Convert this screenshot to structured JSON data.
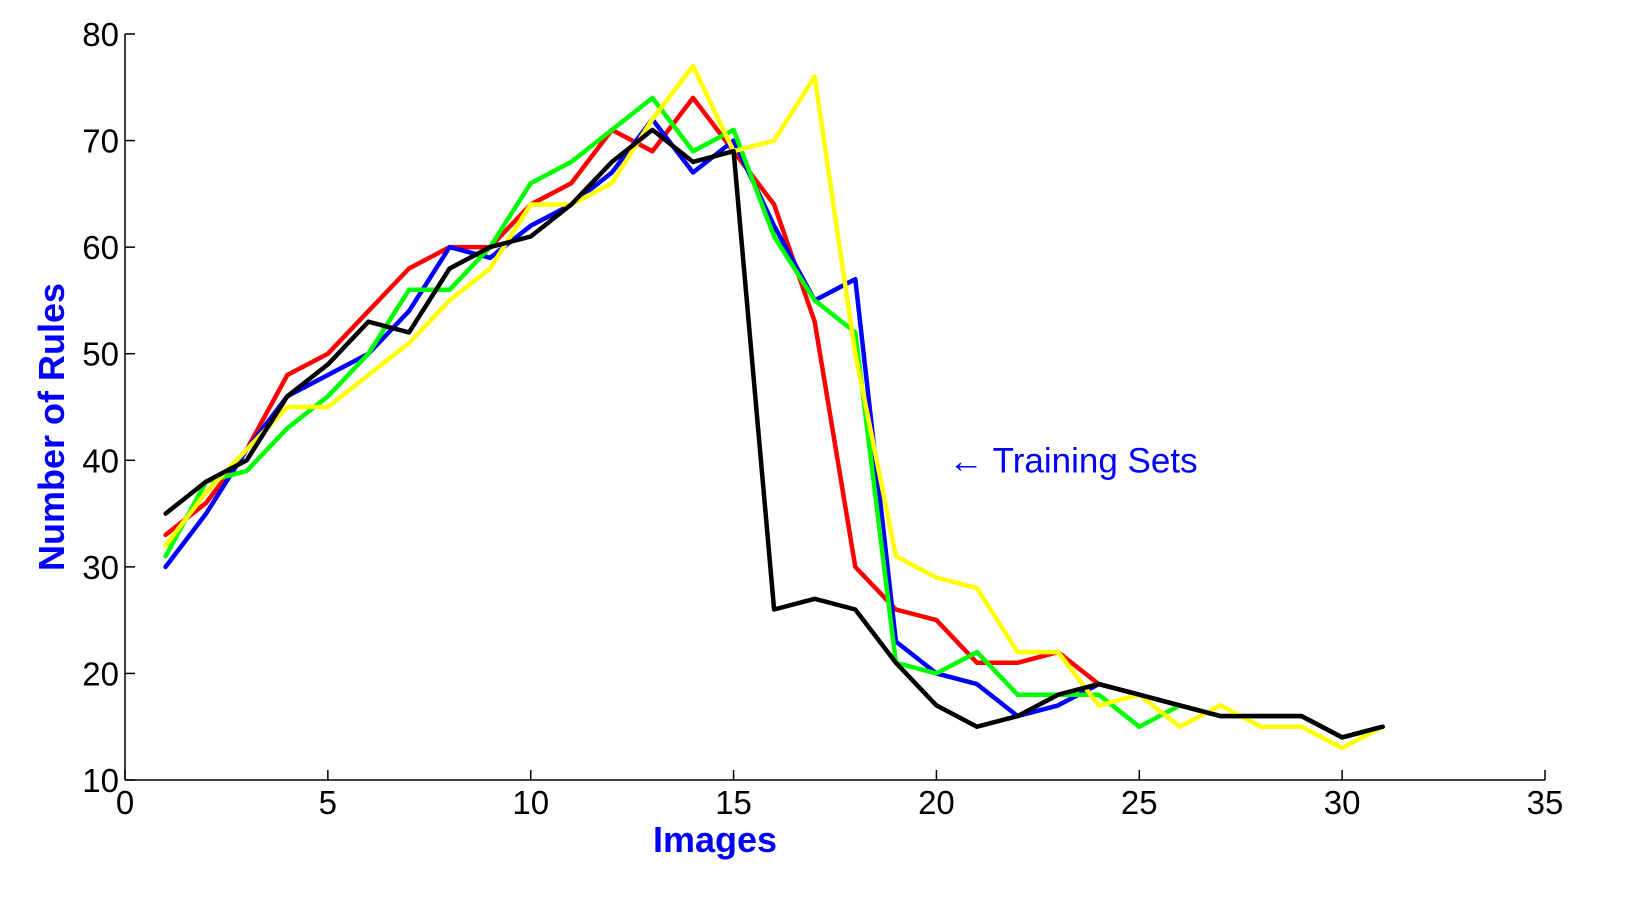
{
  "chart_data": {
    "type": "line",
    "title": "",
    "xlabel": "Images",
    "ylabel": "Number of Rules",
    "xlim": [
      0,
      35
    ],
    "ylim": [
      10,
      80
    ],
    "xticks": [
      0,
      5,
      10,
      15,
      20,
      25,
      30,
      35
    ],
    "yticks": [
      10,
      20,
      30,
      40,
      50,
      60,
      70,
      80
    ],
    "grid": false,
    "legend": "none",
    "annotation": {
      "text": "← Training Sets",
      "x": 20.3,
      "y": 40,
      "color": "#0000ff"
    },
    "label_color": "#0000ff",
    "series": [
      {
        "name": "red",
        "color": "#ff0000",
        "x": [
          1,
          2,
          3,
          4,
          5,
          6,
          7,
          8,
          9,
          10,
          11,
          12,
          13,
          14,
          15,
          16,
          17,
          18,
          19,
          20,
          21,
          22,
          23,
          24,
          25,
          26,
          27,
          28,
          29,
          30,
          31
        ],
        "values": [
          33,
          36,
          41,
          48,
          50,
          54,
          58,
          60,
          60,
          64,
          66,
          71,
          69,
          74,
          69,
          64,
          53,
          30,
          26,
          25,
          21,
          21,
          22,
          19,
          18,
          17,
          16,
          16,
          16,
          14,
          15
        ]
      },
      {
        "name": "blue",
        "color": "#0000ff",
        "x": [
          1,
          2,
          3,
          4,
          5,
          6,
          7,
          8,
          9,
          10,
          11,
          12,
          13,
          14,
          15,
          16,
          17,
          18,
          19,
          20,
          21,
          22,
          23,
          24,
          25,
          26,
          27,
          28,
          29,
          30,
          31
        ],
        "values": [
          30,
          35,
          41,
          46,
          48,
          50,
          54,
          60,
          59,
          62,
          64,
          67,
          72,
          67,
          70,
          62,
          55,
          57,
          23,
          20,
          19,
          16,
          17,
          19,
          18,
          17,
          16,
          16,
          16,
          14,
          15
        ]
      },
      {
        "name": "green",
        "color": "#00ff00",
        "x": [
          1,
          2,
          3,
          4,
          5,
          6,
          7,
          8,
          9,
          10,
          11,
          12,
          13,
          14,
          15,
          16,
          17,
          18,
          19,
          20,
          21,
          22,
          23,
          24,
          25,
          26,
          27,
          28,
          29,
          30,
          31
        ],
        "values": [
          31,
          38,
          39,
          43,
          46,
          50,
          56,
          56,
          60,
          66,
          68,
          71,
          74,
          69,
          71,
          61,
          55,
          52,
          21,
          20,
          22,
          18,
          18,
          18,
          15,
          17,
          16,
          16,
          16,
          14,
          15
        ]
      },
      {
        "name": "yellow",
        "color": "#ffff00",
        "x": [
          1,
          2,
          3,
          4,
          5,
          6,
          7,
          8,
          9,
          10,
          11,
          12,
          13,
          14,
          15,
          16,
          17,
          18,
          19,
          20,
          21,
          22,
          23,
          24,
          25,
          26,
          27,
          28,
          29,
          30,
          31
        ],
        "values": [
          32,
          37,
          41,
          45,
          45,
          48,
          51,
          55,
          58,
          64,
          64,
          66,
          72,
          77,
          69,
          70,
          76,
          50,
          31,
          29,
          28,
          22,
          22,
          17,
          18,
          15,
          17,
          15,
          15,
          13,
          15
        ]
      },
      {
        "name": "black",
        "color": "#000000",
        "x": [
          1,
          2,
          3,
          4,
          5,
          6,
          7,
          8,
          9,
          10,
          11,
          12,
          13,
          14,
          15,
          16,
          17,
          18,
          19,
          20,
          21,
          22,
          23,
          24,
          25,
          26,
          27,
          28,
          29,
          30,
          31
        ],
        "values": [
          35,
          38,
          40,
          46,
          49,
          53,
          52,
          58,
          60,
          61,
          64,
          68,
          71,
          68,
          69,
          26,
          27,
          26,
          21,
          17,
          15,
          16,
          18,
          19,
          18,
          17,
          16,
          16,
          16,
          14,
          15
        ]
      }
    ]
  }
}
